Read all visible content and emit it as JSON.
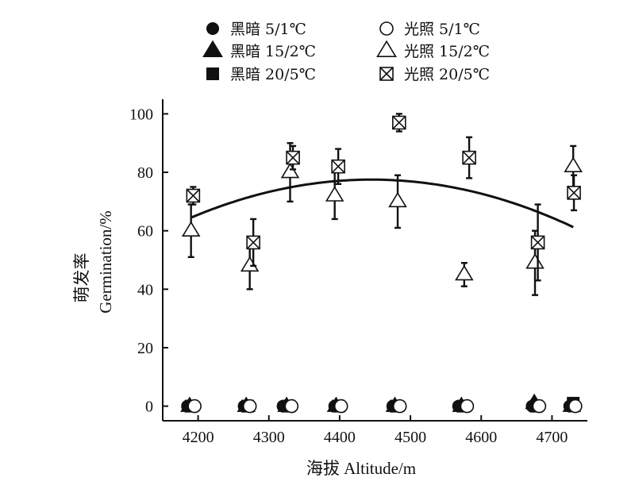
{
  "chart_data": {
    "type": "scatter",
    "xlabel": "海拔 Altitude/m",
    "ylabel_cn": "萌发率",
    "ylabel_en": "Germination/%",
    "xlim": [
      4150,
      4750
    ],
    "ylim": [
      -5,
      105
    ],
    "xticks": [
      4200,
      4300,
      4400,
      4500,
      4600,
      4700
    ],
    "yticks": [
      0,
      20,
      40,
      60,
      80,
      100
    ],
    "legend_placement": "top",
    "series": [
      {
        "name": "黑暗 5/1℃",
        "marker": "circle-filled",
        "x": [
          4185,
          4265,
          4320,
          4393,
          4475,
          4568,
          4672,
          4725
        ],
        "y": [
          0,
          0,
          0,
          0,
          0,
          0,
          0,
          0
        ]
      },
      {
        "name": "黑暗 15/2℃",
        "marker": "triangle-filled",
        "x": [
          4188,
          4268,
          4325,
          4395,
          4478,
          4572,
          4675,
          4728
        ],
        "y": [
          0,
          0,
          0,
          0,
          0,
          0,
          1,
          0
        ]
      },
      {
        "name": "黑暗 20/5℃",
        "marker": "square-filled",
        "x": [
          4190,
          4270,
          4328,
          4398,
          4480,
          4575,
          4678,
          4730
        ],
        "y": [
          0,
          0,
          0,
          0,
          0,
          0,
          0,
          1
        ]
      },
      {
        "name": "光照 5/1℃",
        "marker": "circle-open",
        "x": [
          4195,
          4273,
          4332,
          4402,
          4485,
          4580,
          4682,
          4733
        ],
        "y": [
          0,
          0,
          0,
          0,
          0,
          0,
          0,
          0
        ]
      },
      {
        "name": "光照 15/2℃",
        "marker": "triangle-open",
        "x": [
          4190,
          4273,
          4330,
          4393,
          4482,
          4576,
          4676,
          4730
        ],
        "y": [
          60,
          48,
          80,
          72,
          70,
          45,
          49,
          82
        ],
        "err": [
          9,
          8,
          10,
          8,
          9,
          4,
          11,
          7
        ]
      },
      {
        "name": "光照 20/5℃",
        "marker": "square-cross",
        "x": [
          4193,
          4278,
          4334,
          4398,
          4484,
          4583,
          4680,
          4731
        ],
        "y": [
          72,
          56,
          85,
          82,
          97,
          85,
          56,
          73
        ],
        "err": [
          3,
          8,
          4,
          6,
          3,
          7,
          13,
          6
        ]
      }
    ],
    "fit_curve": {
      "type": "quadratic",
      "x_range": [
        4190,
        4730
      ],
      "vertex_x": 4445,
      "vertex_y": 77.5,
      "a": -0.0002
    }
  }
}
